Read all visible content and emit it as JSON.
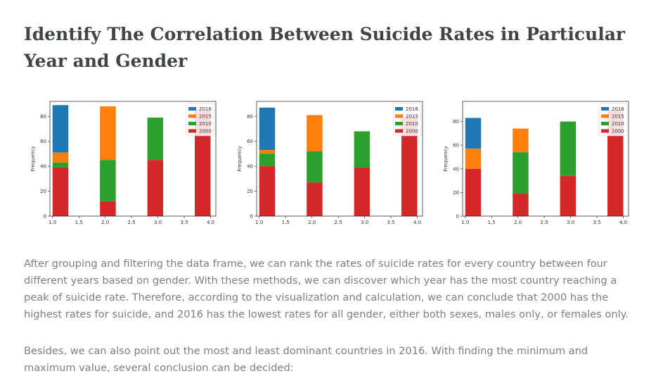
{
  "article": {
    "title": "Identify The Correlation Between Suicide Rates in Particular Year and Gender",
    "paragraph1": "After grouping and filtering the data frame, we can rank the rates of suicide rates for every country between four different years based on gender. With these methods, we can discover which year has the most country reaching a peak of suicide rate. Therefore, according to the visualization and calculation, we can conclude that 2000 has the highest rates for suicide, and 2016 has the lowest rates for all gender, either both sexes, males only, or females only.",
    "paragraph2": "Besides, we can also point out the most and least dominant countries in 2016. With finding the minimum and maximum value, several conclusion can be decided:"
  },
  "colors": {
    "2016": "#1f77b4",
    "2015": "#ff7f0e",
    "2010": "#2ca02c",
    "2000": "#d62728"
  },
  "chart_data": [
    {
      "type": "bar",
      "ylabel": "Frequency",
      "xlim": [
        0.95,
        4.1
      ],
      "ylim": [
        0,
        92
      ],
      "xticks": [
        "1.0",
        "1.5",
        "2.0",
        "2.5",
        "3.0",
        "3.5",
        "4.0"
      ],
      "yticks": [
        "0",
        "20",
        "40",
        "60",
        "80"
      ],
      "legend": "top-right",
      "series": [
        {
          "name": "2016",
          "bars": [
            {
              "x": 1.0,
              "top": 89,
              "bottom": 51
            }
          ]
        },
        {
          "name": "2015",
          "bars": [
            {
              "x": 1.0,
              "top": 51,
              "bottom": 43
            },
            {
              "x": 1.9,
              "top": 88,
              "bottom": 45
            }
          ]
        },
        {
          "name": "2010",
          "bars": [
            {
              "x": 1.0,
              "top": 43,
              "bottom": 39
            },
            {
              "x": 1.9,
              "top": 45,
              "bottom": 12
            },
            {
              "x": 2.8,
              "top": 79,
              "bottom": 45
            }
          ]
        },
        {
          "name": "2000",
          "bars": [
            {
              "x": 1.0,
              "top": 39,
              "bottom": 0
            },
            {
              "x": 1.9,
              "top": 12,
              "bottom": 0
            },
            {
              "x": 2.8,
              "top": 45,
              "bottom": 0
            },
            {
              "x": 3.7,
              "top": 85,
              "bottom": 0
            }
          ]
        }
      ]
    },
    {
      "type": "bar",
      "ylabel": "Frequency",
      "xlim": [
        0.95,
        4.1
      ],
      "ylim": [
        0,
        92
      ],
      "xticks": [
        "1.0",
        "1.5",
        "2.0",
        "2.5",
        "3.0",
        "3.5",
        "4.0"
      ],
      "yticks": [
        "0",
        "20",
        "40",
        "60",
        "80"
      ],
      "legend": "top-right",
      "series": [
        {
          "name": "2016",
          "bars": [
            {
              "x": 1.0,
              "top": 87,
              "bottom": 53
            }
          ]
        },
        {
          "name": "2015",
          "bars": [
            {
              "x": 1.0,
              "top": 53,
              "bottom": 50
            },
            {
              "x": 1.9,
              "top": 81,
              "bottom": 52
            }
          ]
        },
        {
          "name": "2010",
          "bars": [
            {
              "x": 1.0,
              "top": 50,
              "bottom": 40
            },
            {
              "x": 1.9,
              "top": 52,
              "bottom": 27
            },
            {
              "x": 2.8,
              "top": 68,
              "bottom": 39
            }
          ]
        },
        {
          "name": "2000",
          "bars": [
            {
              "x": 1.0,
              "top": 40,
              "bottom": 0
            },
            {
              "x": 1.9,
              "top": 27,
              "bottom": 0
            },
            {
              "x": 2.8,
              "top": 39,
              "bottom": 0
            },
            {
              "x": 3.7,
              "top": 80,
              "bottom": 0
            }
          ]
        }
      ]
    },
    {
      "type": "bar",
      "ylabel": "Frequency",
      "xlim": [
        0.95,
        4.1
      ],
      "ylim": [
        0,
        97
      ],
      "xticks": [
        "1.0",
        "1.5",
        "2.0",
        "2.5",
        "3.0",
        "3.5",
        "4.0"
      ],
      "yticks": [
        "0",
        "20",
        "40",
        "60",
        "80"
      ],
      "legend": "top-right",
      "series": [
        {
          "name": "2016",
          "bars": [
            {
              "x": 1.0,
              "top": 83,
              "bottom": 57
            }
          ]
        },
        {
          "name": "2015",
          "bars": [
            {
              "x": 1.0,
              "top": 57,
              "bottom": 40
            },
            {
              "x": 1.9,
              "top": 74,
              "bottom": 54
            }
          ]
        },
        {
          "name": "2010",
          "bars": [
            {
              "x": 1.9,
              "top": 54,
              "bottom": 19
            },
            {
              "x": 2.8,
              "top": 80,
              "bottom": 34
            }
          ]
        },
        {
          "name": "2000",
          "bars": [
            {
              "x": 1.0,
              "top": 40,
              "bottom": 0
            },
            {
              "x": 1.9,
              "top": 19,
              "bottom": 0
            },
            {
              "x": 2.8,
              "top": 34,
              "bottom": 0
            },
            {
              "x": 3.7,
              "top": 90,
              "bottom": 0
            }
          ]
        }
      ]
    }
  ]
}
